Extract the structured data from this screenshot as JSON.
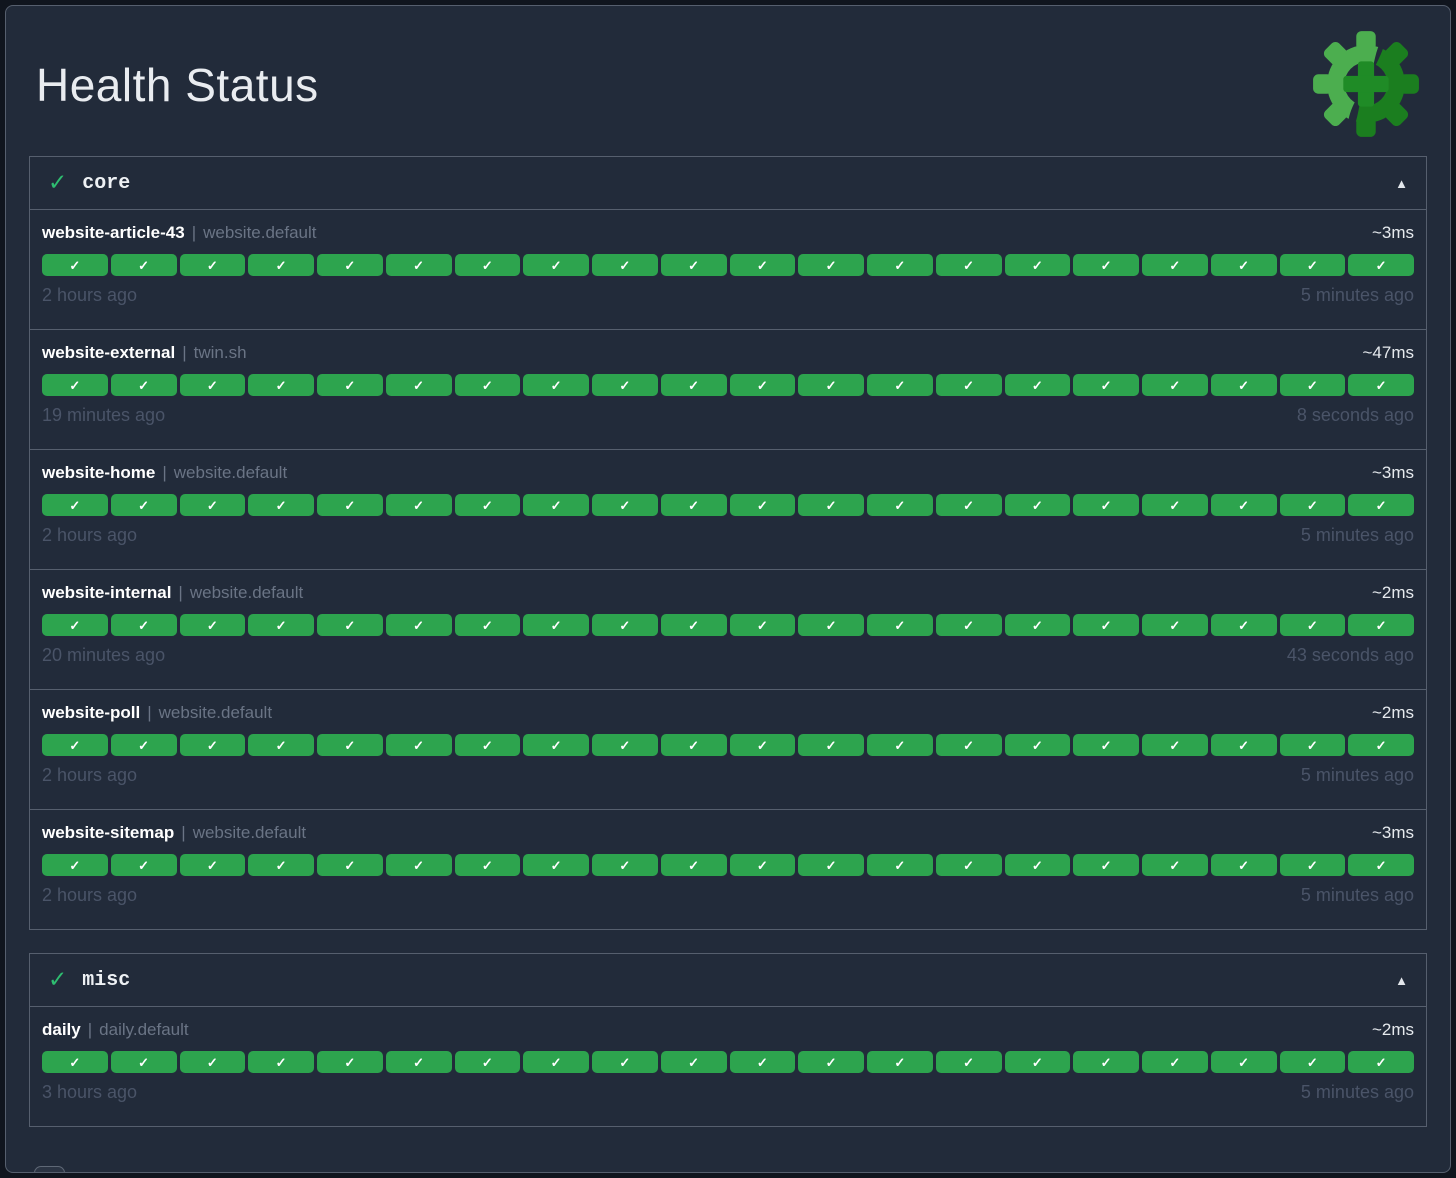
{
  "page": {
    "title": "Health Status"
  },
  "icons": {
    "group_check": "✓",
    "segment_check": "✓",
    "collapse": "▲",
    "back": "‹",
    "logo": "healthchecks-gear-plus-logo"
  },
  "colors": {
    "segment_green": "#2da44e",
    "group_check_green": "#2ebd70",
    "logo_light_green": "#4cae4f",
    "logo_dark_green": "#1b7e1f",
    "logo_plus_green": "#1f8b26",
    "card_background": "#222b3a",
    "border_gray": "#565f6e",
    "muted_text": "#4a5468"
  },
  "groups": [
    {
      "name": "core",
      "status": "healthy",
      "checks": [
        {
          "name": "website-article-43",
          "pipe": "|",
          "tag": "website.default",
          "latency": "~3ms",
          "first_time": "2 hours ago",
          "last_time": "5 minutes ago",
          "segments": 20,
          "segment_status": "healthy"
        },
        {
          "name": "website-external",
          "pipe": "|",
          "tag": "twin.sh",
          "latency": "~47ms",
          "first_time": "19 minutes ago",
          "last_time": "8 seconds ago",
          "segments": 20,
          "segment_status": "healthy"
        },
        {
          "name": "website-home",
          "pipe": "|",
          "tag": "website.default",
          "latency": "~3ms",
          "first_time": "2 hours ago",
          "last_time": "5 minutes ago",
          "segments": 20,
          "segment_status": "healthy"
        },
        {
          "name": "website-internal",
          "pipe": "|",
          "tag": "website.default",
          "latency": "~2ms",
          "first_time": "20 minutes ago",
          "last_time": "43 seconds ago",
          "segments": 20,
          "segment_status": "healthy"
        },
        {
          "name": "website-poll",
          "pipe": "|",
          "tag": "website.default",
          "latency": "~2ms",
          "first_time": "2 hours ago",
          "last_time": "5 minutes ago",
          "segments": 20,
          "segment_status": "healthy"
        },
        {
          "name": "website-sitemap",
          "pipe": "|",
          "tag": "website.default",
          "latency": "~3ms",
          "first_time": "2 hours ago",
          "last_time": "5 minutes ago",
          "segments": 20,
          "segment_status": "healthy"
        }
      ]
    },
    {
      "name": "misc",
      "status": "healthy",
      "checks": [
        {
          "name": "daily",
          "pipe": "|",
          "tag": "daily.default",
          "latency": "~2ms",
          "first_time": "3 hours ago",
          "last_time": "5 minutes ago",
          "segments": 20,
          "segment_status": "healthy"
        }
      ]
    }
  ]
}
